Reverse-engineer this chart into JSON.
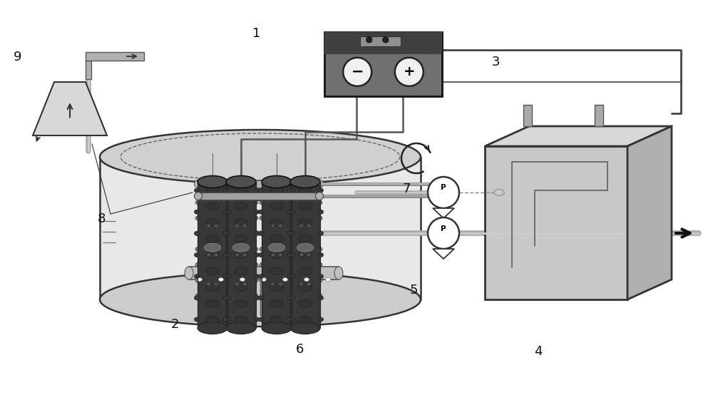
{
  "bg_color": "#ffffff",
  "tank_fill": "#e8e8e8",
  "tank_edge": "#333333",
  "tank_top_fill": "#d0d0d0",
  "electrode_dark_body": "#4a4a4a",
  "electrode_dark_top": "#606060",
  "electrode_light_body": "#888888",
  "electrode_light_top": "#aaaaaa",
  "electrode_edge": "#222222",
  "frame_fill": "#c8c8c8",
  "frame_edge": "#444444",
  "pipe_fill": "#b0b0b0",
  "pipe_edge": "#555555",
  "box_front": "#c8c8c8",
  "box_top": "#d8d8d8",
  "box_right": "#b0b0b0",
  "box_edge": "#333333",
  "ps_dark": "#404040",
  "ps_mid": "#707070",
  "ps_light": "#909090",
  "wire_color": "#555555",
  "funnel_fill": "#d8d8d8",
  "funnel_edge": "#333333",
  "label_color": "#111111",
  "label_fs": 13
}
